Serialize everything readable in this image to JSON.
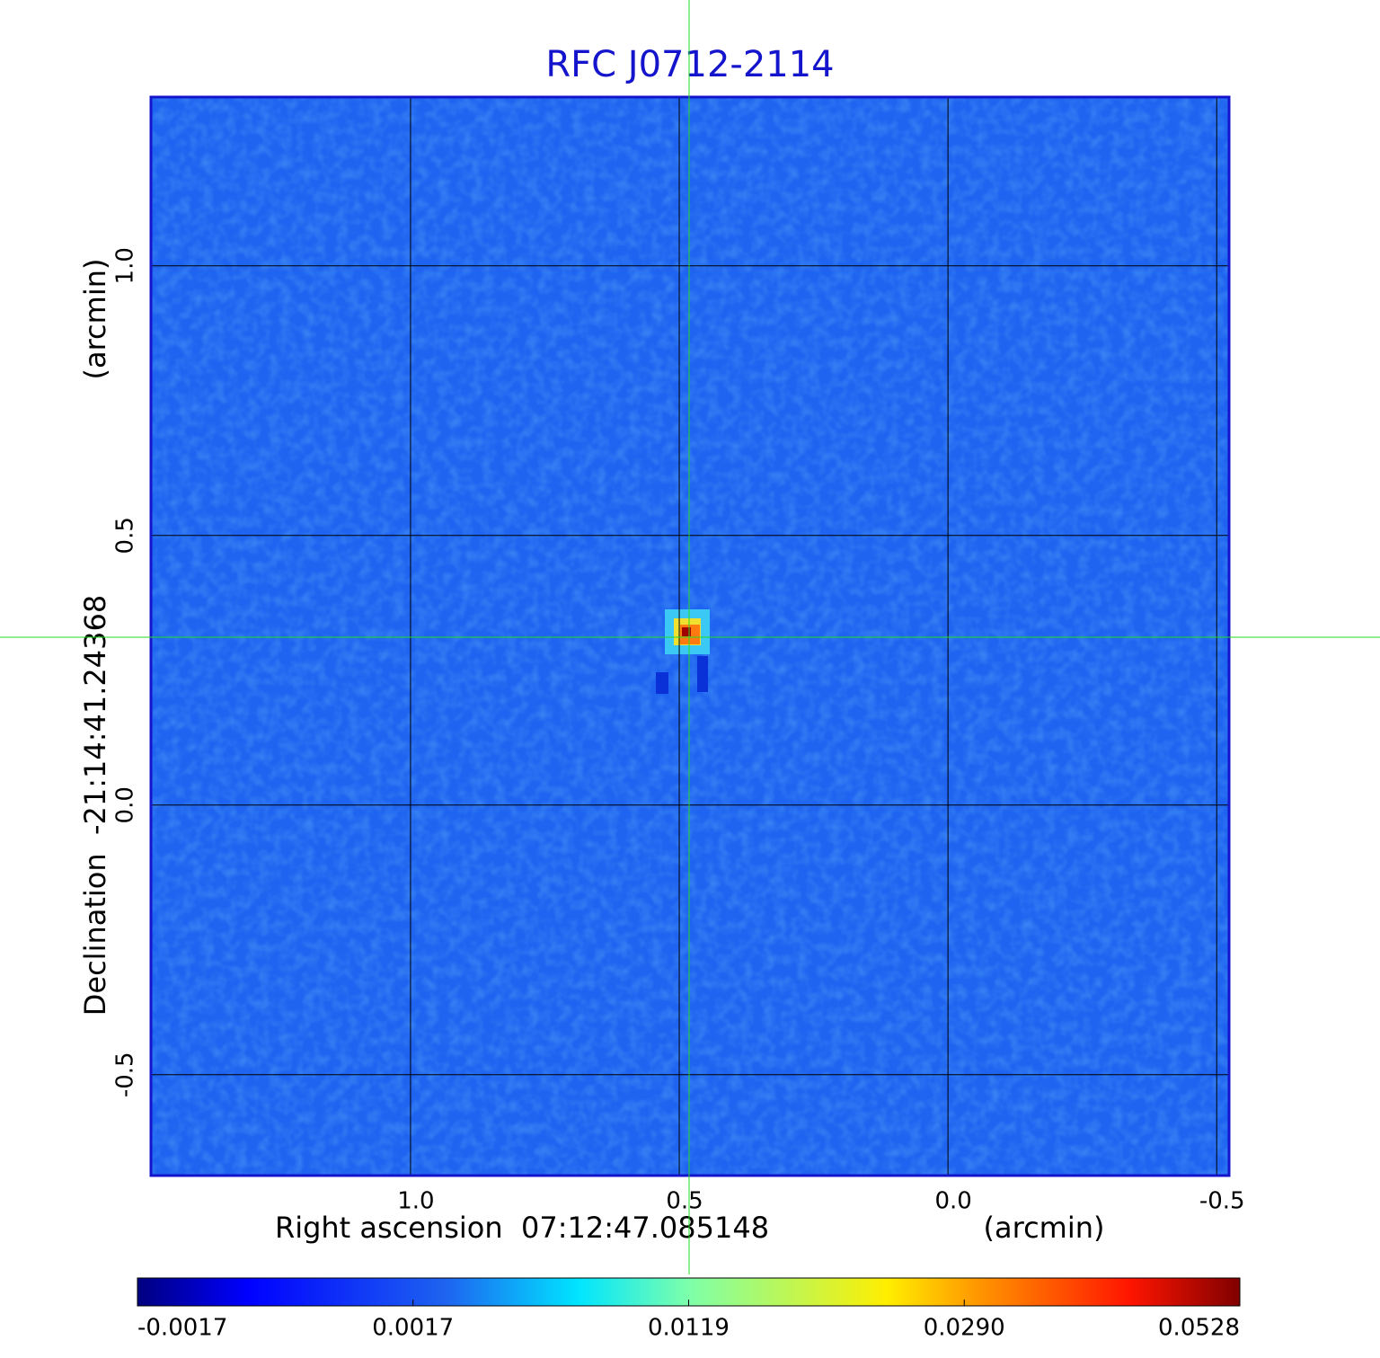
{
  "chart_data": {
    "type": "image",
    "title": "RFC J0712-2114",
    "x_label": "Right ascension  07:12:47.085148",
    "x_unit": "(arcmin)",
    "y_label": "Declination  -21:14:41.24368",
    "y_unit": "(arcmin)",
    "xlim": [
      1.483,
      -0.523
    ],
    "ylim": [
      -0.687,
      1.313
    ],
    "xticks": [
      {
        "value": 1,
        "label": "1.0"
      },
      0.5,
      {
        "value": 0,
        "label": "0.0"
      },
      -0.5
    ],
    "yticks": [
      {
        "value": 1,
        "label": "1.0"
      },
      0.5,
      {
        "value": 0,
        "label": "0.0"
      },
      -0.5
    ],
    "grid": true,
    "colormap": "jet",
    "colorbar_ticks": [
      -0.0017,
      0.0017,
      0.0119,
      {
        "value": 0.029,
        "label": "0.0290"
      },
      0.0528
    ]
  }
}
